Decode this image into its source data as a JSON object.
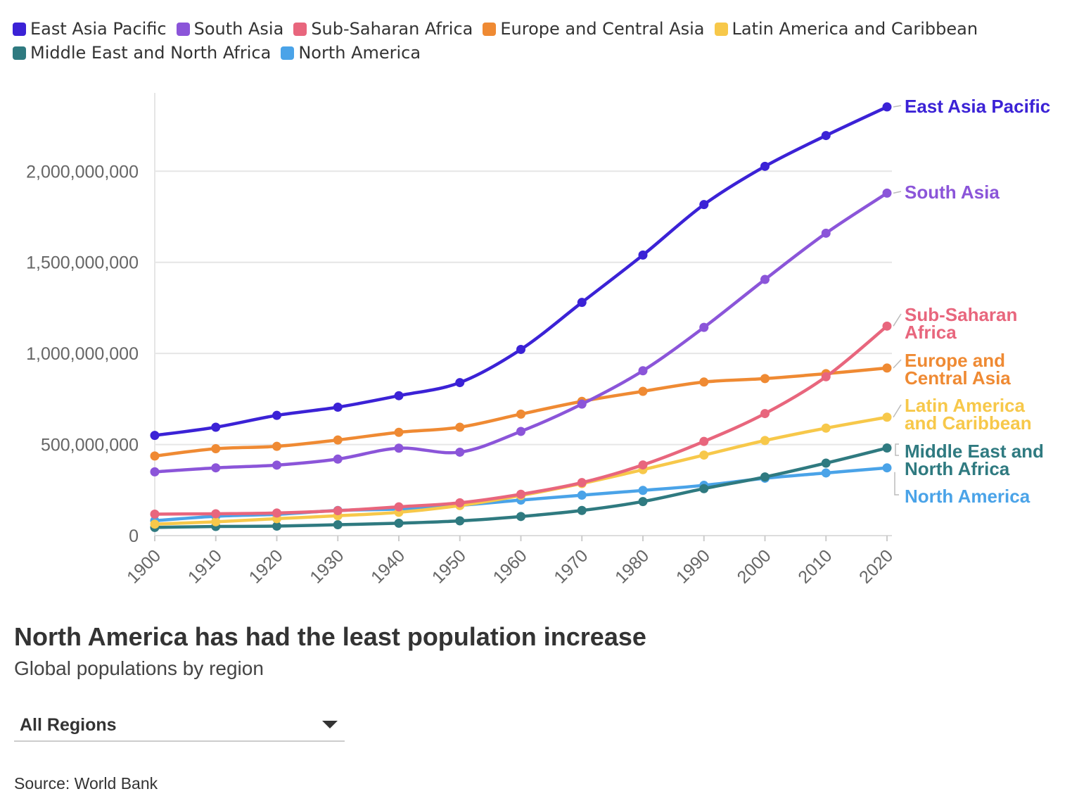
{
  "chart_data": {
    "type": "line",
    "title": "North America has had the least population increase",
    "subtitle": "Global populations by region",
    "x": [
      1900,
      1910,
      1920,
      1930,
      1940,
      1950,
      1960,
      1970,
      1980,
      1990,
      2000,
      2010,
      2020
    ],
    "ylim": [
      0,
      2430000000
    ],
    "yticks": [
      {
        "value": 0,
        "label": "0"
      },
      {
        "value": 500000000,
        "label": "500,000,000"
      },
      {
        "value": 1000000000,
        "label": "1,000,000,000"
      },
      {
        "value": 1500000000,
        "label": "1,500,000,000"
      },
      {
        "value": 2000000000,
        "label": "2,000,000,000"
      }
    ],
    "series": [
      {
        "name": "East Asia Pacific",
        "color": "#3b22d6",
        "end_label": [
          "East Asia Pacific"
        ],
        "values": [
          550000000,
          595000000,
          660000000,
          705000000,
          768000000,
          840000000,
          1022000000,
          1280000000,
          1540000000,
          1817000000,
          2027000000,
          2196000000,
          2353000000
        ]
      },
      {
        "name": "South Asia",
        "color": "#8b55d9",
        "end_label": [
          "South Asia"
        ],
        "values": [
          350000000,
          372000000,
          387000000,
          420000000,
          480000000,
          458000000,
          572000000,
          722000000,
          905000000,
          1143000000,
          1406000000,
          1660000000,
          1880000000
        ]
      },
      {
        "name": "Sub-Saharan Africa",
        "color": "#e8667d",
        "end_label": [
          "Sub-Saharan",
          "Africa"
        ],
        "values": [
          118000000,
          120000000,
          124000000,
          137000000,
          158000000,
          180000000,
          227000000,
          291000000,
          388000000,
          517000000,
          670000000,
          872000000,
          1150000000
        ]
      },
      {
        "name": "Europe and Central Asia",
        "color": "#ef8a33",
        "end_label": [
          "Europe and",
          "Central Asia"
        ],
        "values": [
          437000000,
          477000000,
          490000000,
          525000000,
          567000000,
          595000000,
          667000000,
          737000000,
          792000000,
          843000000,
          862000000,
          889000000,
          920000000
        ]
      },
      {
        "name": "Latin America and Caribbean",
        "color": "#f7c84a",
        "end_label": [
          "Latin America",
          "and Caribbean"
        ],
        "values": [
          63000000,
          76000000,
          93000000,
          109000000,
          128000000,
          165000000,
          220000000,
          286000000,
          362000000,
          442000000,
          522000000,
          590000000,
          650000000
        ]
      },
      {
        "name": "Middle East and North Africa",
        "color": "#2f7a80",
        "end_label": [
          "Middle East and",
          "North Africa"
        ],
        "values": [
          45000000,
          50000000,
          52000000,
          60000000,
          68000000,
          81000000,
          105000000,
          138000000,
          187000000,
          258000000,
          322000000,
          398000000,
          481000000
        ]
      },
      {
        "name": "North America",
        "color": "#4aa3e8",
        "end_label": [
          "North America"
        ],
        "values": [
          82000000,
          106000000,
          117000000,
          138000000,
          146000000,
          166000000,
          195000000,
          222000000,
          248000000,
          276000000,
          315000000,
          344000000,
          372000000
        ]
      }
    ]
  },
  "controls": {
    "dropdown_label": "All Regions"
  },
  "footer": {
    "source": "Source: World Bank"
  }
}
